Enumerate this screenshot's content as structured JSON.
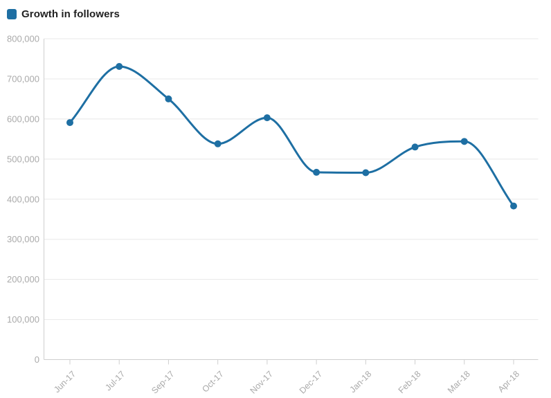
{
  "legend": {
    "label": "Growth in followers"
  },
  "colors": {
    "series": "#1e6fa3",
    "grid": "#e8e8e8",
    "axis": "#cfcfcf",
    "tick_label": "#aaaaaa",
    "legend_text": "#212121",
    "background": "#ffffff"
  },
  "chart_data": {
    "type": "line",
    "title": "Growth in followers",
    "categories": [
      "Jun-17",
      "Jul-17",
      "Sep-17",
      "Oct-17",
      "Nov-17",
      "Dec-17",
      "Jan-18",
      "Feb-18",
      "Mar-18",
      "Apr-18"
    ],
    "series": [
      {
        "name": "Growth in followers",
        "values": [
          591000,
          731000,
          650000,
          538000,
          603000,
          467000,
          466000,
          530000,
          544000,
          383000
        ]
      }
    ],
    "xlabel": "",
    "ylabel": "",
    "ylim": [
      0,
      800000
    ],
    "ytick_step": 100000,
    "ytick_labels": [
      "0",
      "100,000",
      "200,000",
      "300,000",
      "400,000",
      "500,000",
      "600,000",
      "700,000",
      "800,000"
    ],
    "grid": "horizontal",
    "legend_position": "top-left",
    "marker": "circle",
    "line_style": "smooth-monotone",
    "x_label_rotation": -45
  }
}
